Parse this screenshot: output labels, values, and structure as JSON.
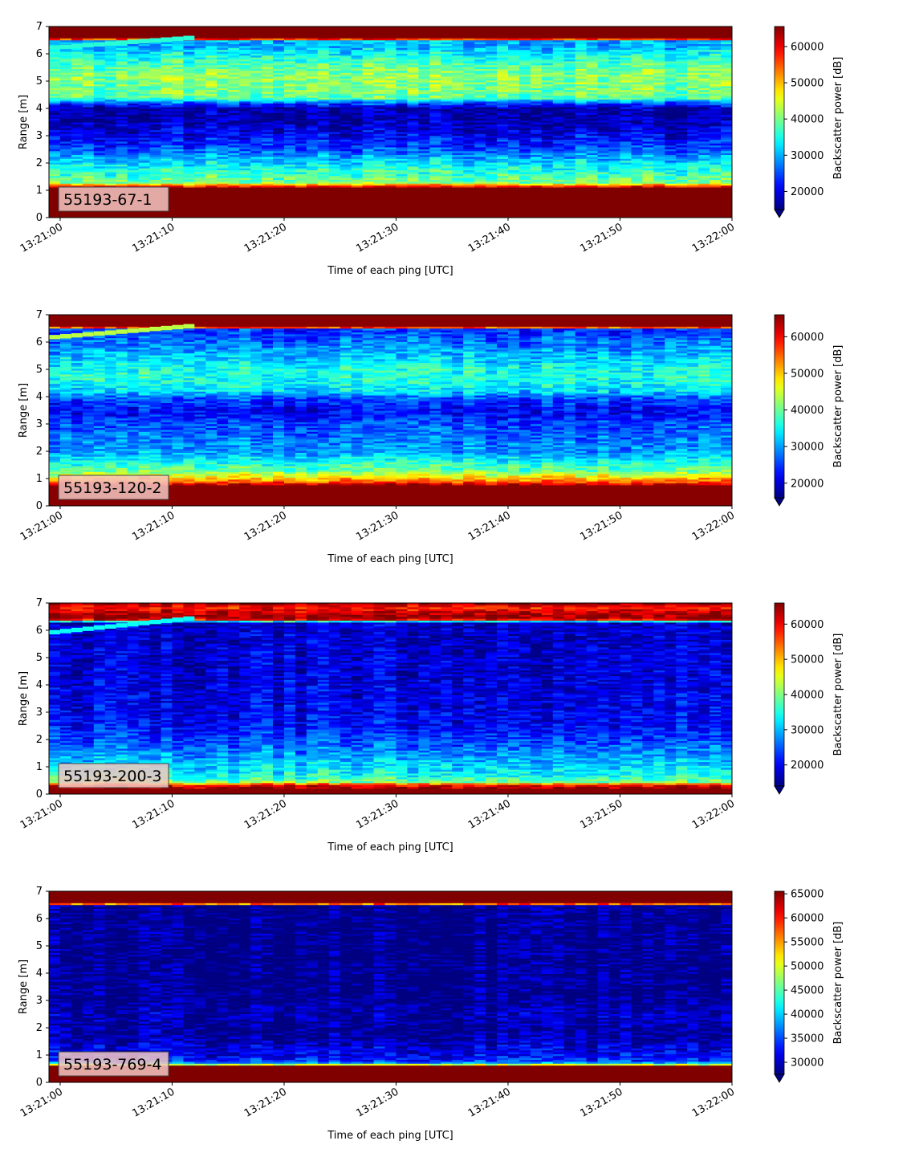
{
  "chart_data": [
    {
      "type": "heatmap",
      "label": "55193-67-1",
      "xlabel": "Time of each ping [UTC]",
      "ylabel": "Range [m]",
      "x_ticks": [
        "13:21:00",
        "13:21:10",
        "13:21:20",
        "13:21:30",
        "13:21:40",
        "13:21:50",
        "13:22:00"
      ],
      "x_range": [
        "13:20:59",
        "13:22:00"
      ],
      "y_ticks": [
        0,
        1,
        2,
        3,
        4,
        5,
        6,
        7
      ],
      "ylim": [
        0,
        7
      ],
      "colorbar": {
        "label": "Backscatter power [dB]",
        "colormap": "jet",
        "extend": "min",
        "vmin": 15000,
        "vmax": 65535,
        "ticks": [
          20000,
          30000,
          40000,
          50000,
          60000
        ]
      },
      "profile": [
        [
          0.0,
          65535
        ],
        [
          0.2,
          65535
        ],
        [
          1.1,
          65535
        ],
        [
          1.3,
          40000
        ],
        [
          1.6,
          37000
        ],
        [
          1.9,
          34000
        ],
        [
          2.2,
          30000
        ],
        [
          2.6,
          24000
        ],
        [
          3.0,
          21000
        ],
        [
          3.5,
          17500
        ],
        [
          4.0,
          17000
        ],
        [
          4.2,
          25000
        ],
        [
          4.4,
          39000
        ],
        [
          4.8,
          40000
        ],
        [
          5.2,
          41000
        ],
        [
          5.6,
          38000
        ],
        [
          6.0,
          34000
        ],
        [
          6.3,
          30000
        ],
        [
          6.5,
          30000
        ],
        [
          6.55,
          60000
        ],
        [
          6.62,
          65535
        ],
        [
          7.0,
          65535
        ]
      ],
      "surface_line": {
        "start": [
          0,
          6.15
        ],
        "end": [
          12,
          6.5
        ],
        "value": 36000
      }
    },
    {
      "type": "heatmap",
      "label": "55193-120-2",
      "xlabel": "Time of each ping [UTC]",
      "ylabel": "Range [m]",
      "x_ticks": [
        "13:21:00",
        "13:21:10",
        "13:21:20",
        "13:21:30",
        "13:21:40",
        "13:21:50",
        "13:22:00"
      ],
      "x_range": [
        "13:20:59",
        "13:22:00"
      ],
      "y_ticks": [
        0,
        1,
        2,
        3,
        4,
        5,
        6,
        7
      ],
      "ylim": [
        0,
        7
      ],
      "colorbar": {
        "label": "Backscatter power [dB]",
        "colormap": "jet",
        "extend": "min",
        "vmin": 16000,
        "vmax": 66000,
        "ticks": [
          20000,
          30000,
          40000,
          50000,
          60000
        ]
      },
      "profile": [
        [
          0.0,
          65535
        ],
        [
          0.2,
          65535
        ],
        [
          0.75,
          65535
        ],
        [
          0.9,
          55000
        ],
        [
          1.1,
          47000
        ],
        [
          1.3,
          40000
        ],
        [
          1.6,
          36000
        ],
        [
          2.0,
          30000
        ],
        [
          2.5,
          28000
        ],
        [
          3.0,
          26000
        ],
        [
          3.5,
          22000
        ],
        [
          4.0,
          27000
        ],
        [
          4.2,
          33000
        ],
        [
          4.6,
          36000
        ],
        [
          5.0,
          36000
        ],
        [
          5.5,
          32000
        ],
        [
          6.0,
          28000
        ],
        [
          6.4,
          25000
        ],
        [
          6.5,
          25000
        ],
        [
          6.55,
          60000
        ],
        [
          6.6,
          65535
        ],
        [
          7.0,
          65535
        ]
      ],
      "surface_line": {
        "start": [
          0,
          6.1
        ],
        "end": [
          12,
          6.5
        ],
        "value": 44000
      }
    },
    {
      "type": "heatmap",
      "label": "55193-200-3",
      "xlabel": "Time of each ping [UTC]",
      "ylabel": "Range [m]",
      "x_ticks": [
        "13:21:00",
        "13:21:10",
        "13:21:20",
        "13:21:30",
        "13:21:40",
        "13:21:50",
        "13:22:00"
      ],
      "x_range": [
        "13:20:59",
        "13:22:00"
      ],
      "y_ticks": [
        0,
        1,
        2,
        3,
        4,
        5,
        6,
        7
      ],
      "ylim": [
        0,
        7
      ],
      "colorbar": {
        "label": "Backscatter power [dB]",
        "colormap": "jet",
        "extend": "min",
        "vmin": 14000,
        "vmax": 66000,
        "ticks": [
          20000,
          30000,
          40000,
          50000,
          60000
        ]
      },
      "profile": [
        [
          0.0,
          65535
        ],
        [
          0.2,
          65535
        ],
        [
          0.35,
          60000
        ],
        [
          0.45,
          40000
        ],
        [
          0.7,
          34000
        ],
        [
          1.0,
          32000
        ],
        [
          1.5,
          28000
        ],
        [
          2.0,
          24000
        ],
        [
          2.5,
          21000
        ],
        [
          3.0,
          20000
        ],
        [
          4.0,
          19000
        ],
        [
          5.0,
          18500
        ],
        [
          6.0,
          18000
        ],
        [
          6.3,
          18000
        ],
        [
          6.4,
          60000
        ],
        [
          6.5,
          65535
        ],
        [
          6.7,
          62000
        ],
        [
          6.85,
          58000
        ],
        [
          7.0,
          65535
        ]
      ],
      "surface_line": {
        "start": [
          0,
          5.85
        ],
        "end": [
          12,
          6.35
        ],
        "value": 34000
      }
    },
    {
      "type": "heatmap",
      "label": "55193-769-4",
      "xlabel": "Time of each ping [UTC]",
      "ylabel": "Range [m]",
      "x_ticks": [
        "13:21:00",
        "13:21:10",
        "13:21:20",
        "13:21:30",
        "13:21:40",
        "13:21:50",
        "13:22:00"
      ],
      "x_range": [
        "13:20:59",
        "13:22:00"
      ],
      "y_ticks": [
        0,
        1,
        2,
        3,
        4,
        5,
        6,
        7
      ],
      "ylim": [
        0,
        7
      ],
      "colorbar": {
        "label": "Backscatter power [dB]",
        "colormap": "jet",
        "extend": "min",
        "vmin": 27500,
        "vmax": 65535,
        "ticks": [
          30000,
          35000,
          40000,
          45000,
          50000,
          55000,
          60000,
          65000
        ]
      },
      "profile": [
        [
          0.0,
          65535
        ],
        [
          0.2,
          65535
        ],
        [
          0.6,
          65535
        ],
        [
          0.7,
          40000
        ],
        [
          0.8,
          34000
        ],
        [
          1.0,
          32000
        ],
        [
          1.3,
          31000
        ],
        [
          1.6,
          29000
        ],
        [
          2.0,
          28500
        ],
        [
          2.5,
          29500
        ],
        [
          2.8,
          29000
        ],
        [
          3.0,
          28000
        ],
        [
          6.5,
          28000
        ],
        [
          6.55,
          60000
        ],
        [
          6.62,
          65535
        ],
        [
          7.0,
          65535
        ]
      ],
      "surface_line": null
    }
  ]
}
